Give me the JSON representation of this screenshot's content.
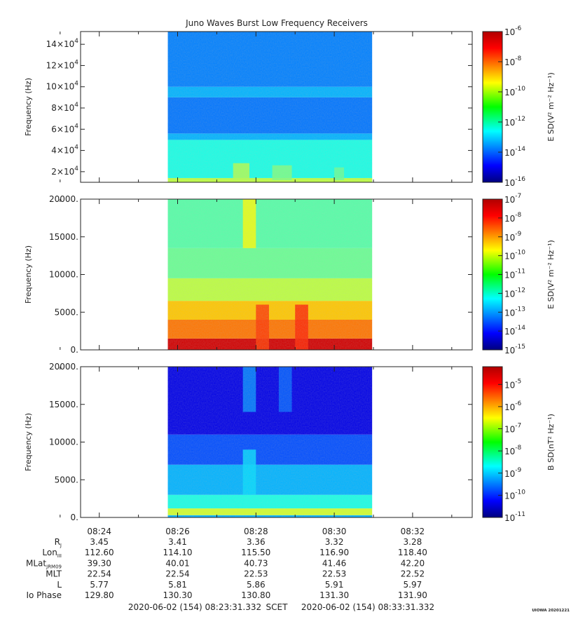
{
  "title": "Juno Waves Burst Low Frequency Receivers",
  "credit": "UIOWA 20201221",
  "colors": {
    "axis": "#222222",
    "background": "#ffffff",
    "empty": "#ffffff"
  },
  "chart_data": [
    {
      "type": "heatmap",
      "panel": "top",
      "ylabel": "Frequency (Hz)",
      "ylim": [
        10000,
        152000
      ],
      "yticks": [
        {
          "v": 20000,
          "base": "2×10",
          "exp": "4"
        },
        {
          "v": 40000,
          "base": "4×10",
          "exp": "4"
        },
        {
          "v": 60000,
          "base": "6×10",
          "exp": "4"
        },
        {
          "v": 80000,
          "base": "8×10",
          "exp": "4"
        },
        {
          "v": 100000,
          "base": "10×10",
          "exp": "4"
        },
        {
          "v": 120000,
          "base": "12×10",
          "exp": "4"
        },
        {
          "v": 140000,
          "base": "14×10",
          "exp": "4"
        }
      ],
      "colorbar": {
        "label": "E SD(V² m⁻² Hz⁻¹)",
        "scale": "log",
        "range_exp": [
          -16,
          -6
        ],
        "ticks": [
          "-6",
          "-8",
          "-10",
          "-12",
          "-14",
          "-16"
        ]
      },
      "data_time_range": [
        "08:25:45",
        "08:30:58"
      ],
      "bands": [
        {
          "f_from": 10000,
          "f_to": 14000,
          "level": 0.56
        },
        {
          "f_from": 14000,
          "f_to": 50000,
          "level": 0.4
        },
        {
          "f_from": 50000,
          "f_to": 56000,
          "level": 0.3
        },
        {
          "f_from": 56000,
          "f_to": 90000,
          "level": 0.24
        },
        {
          "f_from": 90000,
          "f_to": 100000,
          "level": 0.3
        },
        {
          "f_from": 100000,
          "f_to": 152000,
          "level": 0.25
        }
      ],
      "features": [
        {
          "t_from": "08:27:25",
          "t_to": "08:27:50",
          "f_from": 12000,
          "f_to": 28000,
          "level": 0.55
        },
        {
          "t_from": "08:28:25",
          "t_to": "08:28:55",
          "f_from": 12000,
          "f_to": 26000,
          "level": 0.5
        },
        {
          "t_from": "08:30:00",
          "t_to": "08:30:15",
          "f_from": 12000,
          "f_to": 24000,
          "level": 0.48
        }
      ]
    },
    {
      "type": "heatmap",
      "panel": "middle",
      "ylabel": "Frequency (Hz)",
      "ylim": [
        0,
        20000
      ],
      "yticks": [
        {
          "v": 0,
          "base": "0."
        },
        {
          "v": 5000,
          "base": "5000."
        },
        {
          "v": 10000,
          "base": "10000."
        },
        {
          "v": 15000,
          "base": "15000."
        },
        {
          "v": 20000,
          "base": "20000."
        }
      ],
      "colorbar": {
        "label": "E SD(V² m⁻² Hz⁻¹)",
        "scale": "log",
        "range_exp": [
          -15,
          -7
        ],
        "ticks": [
          "-7",
          "-8",
          "-9",
          "-10",
          "-11",
          "-12",
          "-13",
          "-14",
          "-15"
        ]
      },
      "data_time_range": [
        "08:25:45",
        "08:30:58"
      ],
      "bands": [
        {
          "f_from": 0,
          "f_to": 1500,
          "level": 0.92
        },
        {
          "f_from": 1500,
          "f_to": 4000,
          "level": 0.76
        },
        {
          "f_from": 4000,
          "f_to": 6500,
          "level": 0.68
        },
        {
          "f_from": 6500,
          "f_to": 9500,
          "level": 0.56
        },
        {
          "f_from": 9500,
          "f_to": 13500,
          "level": 0.48
        },
        {
          "f_from": 13500,
          "f_to": 20000,
          "level": 0.46
        }
      ],
      "features": [
        {
          "t_from": "08:27:40",
          "t_to": "08:28:00",
          "f_from": 13500,
          "f_to": 20000,
          "level": 0.62
        },
        {
          "t_from": "08:28:00",
          "t_to": "08:28:20",
          "f_from": 0,
          "f_to": 6000,
          "level": 0.82
        },
        {
          "t_from": "08:29:00",
          "t_to": "08:29:20",
          "f_from": 0,
          "f_to": 6000,
          "level": 0.84
        }
      ]
    },
    {
      "type": "heatmap",
      "panel": "bottom",
      "ylabel": "Frequency (Hz)",
      "ylim": [
        0,
        20000
      ],
      "yticks": [
        {
          "v": 0,
          "base": "0."
        },
        {
          "v": 5000,
          "base": "5000."
        },
        {
          "v": 10000,
          "base": "10000."
        },
        {
          "v": 15000,
          "base": "15000."
        },
        {
          "v": 20000,
          "base": "20000."
        }
      ],
      "colorbar": {
        "label": "B SD(nT² Hz⁻¹)",
        "scale": "log",
        "range_exp": [
          -11,
          -4.2
        ],
        "ticks": [
          "-5",
          "-6",
          "-7",
          "-8",
          "-9",
          "-10",
          "-11"
        ]
      },
      "data_time_range": [
        "08:25:45",
        "08:30:58"
      ],
      "bands": [
        {
          "f_from": 0,
          "f_to": 300,
          "level": 0.3
        },
        {
          "f_from": 300,
          "f_to": 1200,
          "level": 0.58
        },
        {
          "f_from": 1200,
          "f_to": 3000,
          "level": 0.4
        },
        {
          "f_from": 3000,
          "f_to": 7000,
          "level": 0.3
        },
        {
          "f_from": 7000,
          "f_to": 11000,
          "level": 0.2
        },
        {
          "f_from": 11000,
          "f_to": 20000,
          "level": 0.1
        }
      ],
      "features": [
        {
          "t_from": "08:27:40",
          "t_to": "08:28:00",
          "f_from": 14000,
          "f_to": 20000,
          "level": 0.26
        },
        {
          "t_from": "08:28:35",
          "t_to": "08:28:55",
          "f_from": 14000,
          "f_to": 20000,
          "level": 0.22
        },
        {
          "t_from": "08:27:40",
          "t_to": "08:28:00",
          "f_from": 3000,
          "f_to": 9000,
          "level": 0.34
        }
      ]
    }
  ],
  "time_axis": {
    "start": "2020-06-02 (154) 08:23:31.332",
    "end": "2020-06-02 (154) 08:33:31.332",
    "frame_label": "SCET",
    "tick_labels": [
      "08:24",
      "08:26",
      "08:28",
      "08:30",
      "08:32"
    ],
    "major_tick_times": [
      "08:24",
      "08:26",
      "08:28",
      "08:30",
      "08:32"
    ],
    "minor_tick_times": [
      "08:23",
      "08:25",
      "08:27",
      "08:29",
      "08:31",
      "08:33"
    ]
  },
  "ephemeris": {
    "rows": [
      {
        "label": "R",
        "sub": "J",
        "values": [
          "3.45",
          "3.41",
          "3.36",
          "3.32",
          "3.28"
        ]
      },
      {
        "label": "Lon",
        "sub": "III",
        "values": [
          "112.60",
          "114.10",
          "115.50",
          "116.90",
          "118.40"
        ]
      },
      {
        "label": "MLat",
        "sub": "JRM09",
        "values": [
          "39.30",
          "40.01",
          "40.73",
          "41.46",
          "42.20"
        ]
      },
      {
        "label": "MLT",
        "sub": "",
        "values": [
          "22.54",
          "22.54",
          "22.53",
          "22.53",
          "22.52"
        ]
      },
      {
        "label": "L",
        "sub": "",
        "values": [
          "5.77",
          "5.81",
          "5.86",
          "5.91",
          "5.97"
        ]
      },
      {
        "label": "Io Phase",
        "sub": "",
        "values": [
          "129.80",
          "130.30",
          "130.80",
          "131.30",
          "131.90"
        ]
      }
    ]
  }
}
